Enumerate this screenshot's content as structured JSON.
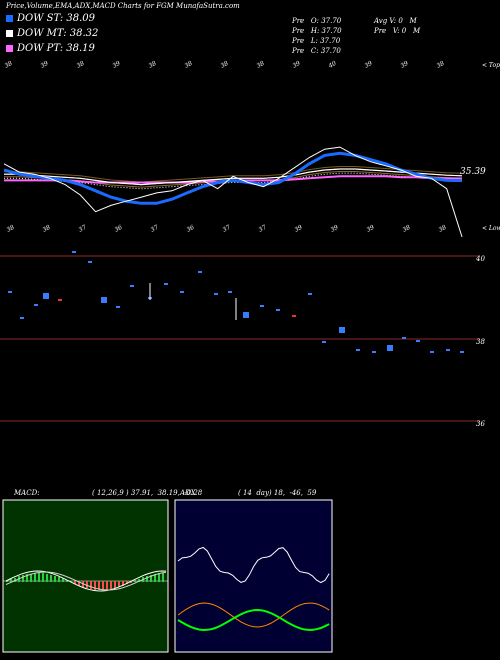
{
  "header": {
    "title": "Price,Volume,EMA,ADX,MACD Charts for FGM MunafaSutra.com"
  },
  "legend": [
    {
      "label": "DOW ST: 38.09",
      "color": "#1a6bff"
    },
    {
      "label": "DOW MT: 38.32",
      "color": "#ffffff"
    },
    {
      "label": "DOW PT: 38.19",
      "color": "#ff66ff"
    }
  ],
  "quote": {
    "col1": [
      "Pre   O: 37.70",
      "Pre   H: 37.70",
      "Pre   L: 37.70",
      "Pre   C: 37.70"
    ],
    "col2": [
      "Avg V: 0   M",
      "Pre   V: 0   M"
    ]
  },
  "price_panel": {
    "last_price_label": "35.39",
    "top_tag": "< Tops",
    "bottom_tag": "< Lows",
    "top_labels": [
      "38",
      "39",
      "38",
      "39",
      "38",
      "38",
      "38",
      "38",
      "39",
      "40",
      "39",
      "39",
      "38"
    ],
    "bottom_labels": [
      "38",
      "38",
      "37",
      "36",
      "37",
      "36",
      "37",
      "37",
      "39",
      "39",
      "39",
      "38",
      "38"
    ]
  },
  "volume_panel": {
    "levels": [
      "40",
      "38",
      "36"
    ]
  },
  "macd": {
    "title": "MACD:",
    "params": "( 12,26,9 ) 37.91,  38.19,  -0.28"
  },
  "adx": {
    "title": "ADX",
    "params": "( 14  day) 18,  -46,  59"
  },
  "chart_data": {
    "type": "line",
    "title": "Price,Volume,EMA,ADX,MACD Charts for FGM MunafaSutra.com",
    "series": [
      {
        "name": "DOW ST",
        "values": [
          38.6,
          38.4,
          38.3,
          38.2,
          38.1,
          37.9,
          37.6,
          37.3,
          37.1,
          37.0,
          37.0,
          37.2,
          37.5,
          37.8,
          38.0,
          38.1,
          38.0,
          37.9,
          38.0,
          38.4,
          38.9,
          39.3,
          39.4,
          39.3,
          39.1,
          38.9,
          38.6,
          38.4,
          38.2,
          38.1,
          38.09
        ]
      },
      {
        "name": "DOW MT",
        "values": [
          38.4,
          38.4,
          38.35,
          38.3,
          38.25,
          38.2,
          38.1,
          38.0,
          37.95,
          37.9,
          37.95,
          38.0,
          38.05,
          38.1,
          38.15,
          38.2,
          38.2,
          38.2,
          38.25,
          38.35,
          38.5,
          38.6,
          38.65,
          38.65,
          38.6,
          38.55,
          38.5,
          38.45,
          38.4,
          38.35,
          38.32
        ]
      },
      {
        "name": "DOW PT",
        "values": [
          38.1,
          38.1,
          38.1,
          38.1,
          38.1,
          38.05,
          38.0,
          38.0,
          38.0,
          38.0,
          38.0,
          38.0,
          38.0,
          38.05,
          38.05,
          38.1,
          38.1,
          38.1,
          38.1,
          38.15,
          38.2,
          38.25,
          38.3,
          38.3,
          38.3,
          38.3,
          38.25,
          38.25,
          38.2,
          38.2,
          38.19
        ]
      }
    ],
    "price": [
      38.9,
      38.5,
      38.4,
      38.2,
      37.9,
      37.4,
      36.6,
      36.9,
      37.1,
      37.3,
      37.5,
      37.6,
      37.9,
      38.1,
      37.7,
      38.3,
      38.0,
      37.8,
      38.2,
      38.7,
      39.2,
      39.6,
      39.7,
      39.3,
      39.0,
      38.8,
      38.6,
      38.3,
      38.2,
      37.7,
      35.39
    ],
    "ylim": [
      35,
      41
    ]
  }
}
